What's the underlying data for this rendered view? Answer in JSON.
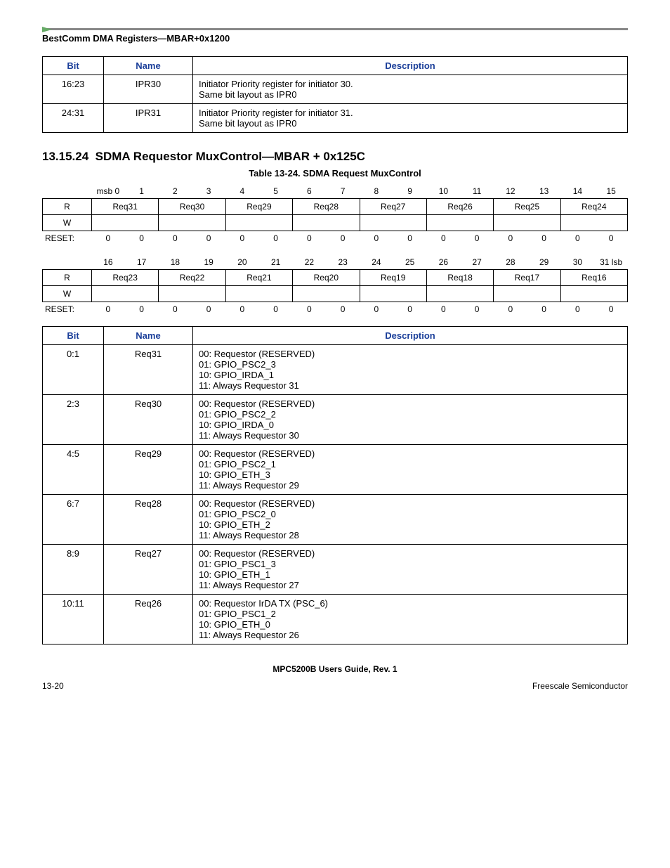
{
  "header": "BestComm DMA Registers—MBAR+0x1200",
  "table1": {
    "headers": {
      "bit": "Bit",
      "name": "Name",
      "desc": "Description"
    },
    "rows": [
      {
        "bit": "16:23",
        "name": "IPR30",
        "desc": [
          "Initiator Priority register for initiator 30.",
          "Same bit layout as IPR0"
        ]
      },
      {
        "bit": "24:31",
        "name": "IPR31",
        "desc": [
          "Initiator Priority register for initiator 31.",
          "Same bit layout as IPR0"
        ]
      }
    ]
  },
  "section": {
    "number": "13.15.24",
    "title": "SDMA Requestor MuxControl—MBAR + 0x125C",
    "caption": "Table 13-24. SDMA Request MuxControl"
  },
  "regUpper": {
    "bits": [
      "msb 0",
      "1",
      "2",
      "3",
      "4",
      "5",
      "6",
      "7",
      "8",
      "9",
      "10",
      "11",
      "12",
      "13",
      "14",
      "15"
    ],
    "rlabel": "R",
    "wlabel": "W",
    "fields": [
      "Req31",
      "Req30",
      "Req29",
      "Req28",
      "Req27",
      "Req26",
      "Req25",
      "Req24"
    ],
    "resetLabel": "RESET:",
    "reset": [
      "0",
      "0",
      "0",
      "0",
      "0",
      "0",
      "0",
      "0",
      "0",
      "0",
      "0",
      "0",
      "0",
      "0",
      "0",
      "0"
    ]
  },
  "regLower": {
    "bits": [
      "16",
      "17",
      "18",
      "19",
      "20",
      "21",
      "22",
      "23",
      "24",
      "25",
      "26",
      "27",
      "28",
      "29",
      "30",
      "31 lsb"
    ],
    "rlabel": "R",
    "wlabel": "W",
    "fields": [
      "Req23",
      "Req22",
      "Req21",
      "Req20",
      "Req19",
      "Req18",
      "Req17",
      "Req16"
    ],
    "resetLabel": "RESET:",
    "reset": [
      "0",
      "0",
      "0",
      "0",
      "0",
      "0",
      "0",
      "0",
      "0",
      "0",
      "0",
      "0",
      "0",
      "0",
      "0",
      "0"
    ]
  },
  "table2": {
    "headers": {
      "bit": "Bit",
      "name": "Name",
      "desc": "Description"
    },
    "rows": [
      {
        "bit": "0:1",
        "name": "Req31",
        "desc": [
          "00: Requestor (RESERVED)",
          "01: GPIO_PSC2_3",
          "10: GPIO_IRDA_1",
          "11: Always Requestor 31"
        ]
      },
      {
        "bit": "2:3",
        "name": "Req30",
        "desc": [
          "00: Requestor (RESERVED)",
          "01: GPIO_PSC2_2",
          "10: GPIO_IRDA_0",
          "11: Always Requestor 30"
        ]
      },
      {
        "bit": "4:5",
        "name": "Req29",
        "desc": [
          "00: Requestor (RESERVED)",
          "01: GPIO_PSC2_1",
          "10: GPIO_ETH_3",
          "11: Always Requestor 29"
        ]
      },
      {
        "bit": "6:7",
        "name": "Req28",
        "desc": [
          "00: Requestor (RESERVED)",
          "01: GPIO_PSC2_0",
          "10: GPIO_ETH_2",
          "11: Always Requestor 28"
        ]
      },
      {
        "bit": "8:9",
        "name": "Req27",
        "desc": [
          "00: Requestor (RESERVED)",
          "01: GPIO_PSC1_3",
          "10: GPIO_ETH_1",
          "11: Always Requestor 27"
        ]
      },
      {
        "bit": "10:11",
        "name": "Req26",
        "desc": [
          "00: Requestor IrDA TX (PSC_6)",
          "01: GPIO_PSC1_2",
          "10: GPIO_ETH_0",
          "11: Always Requestor 26"
        ]
      }
    ]
  },
  "footer": {
    "guide": "MPC5200B Users Guide, Rev. 1",
    "page": "13-20",
    "company": "Freescale Semiconductor"
  }
}
